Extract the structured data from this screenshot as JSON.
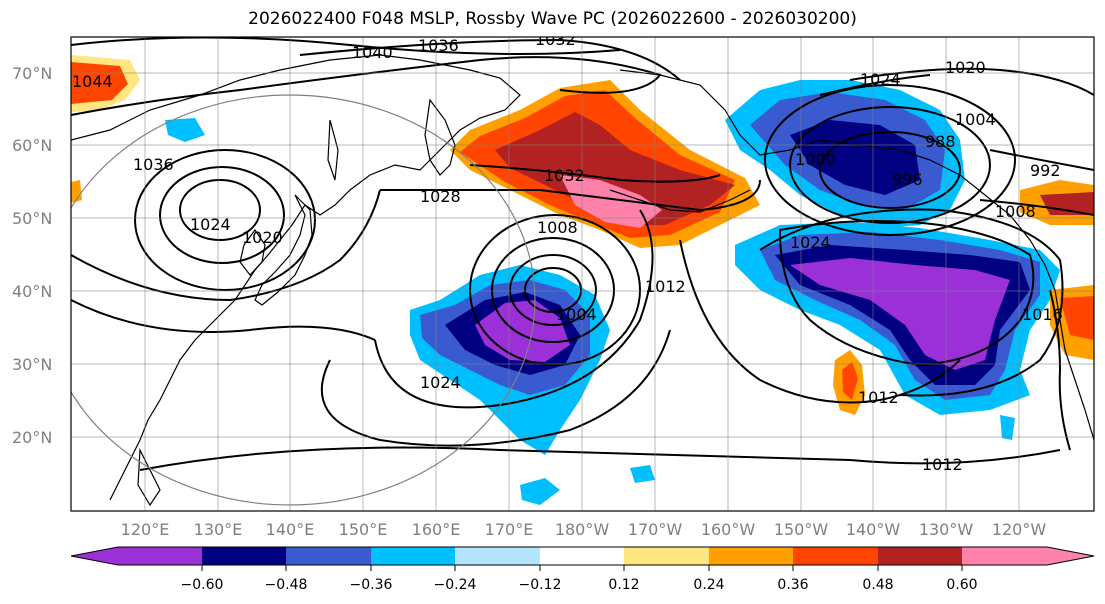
{
  "title": "2026022400 F048 MSLP, Rossby Wave PC (2026022600 - 2026030200)",
  "lat_labels": [
    "70°N",
    "60°N",
    "50°N",
    "40°N",
    "30°N",
    "20°N"
  ],
  "lon_labels": [
    "120°E",
    "130°E",
    "140°E",
    "150°E",
    "160°E",
    "170°E",
    "180°W",
    "170°W",
    "160°W",
    "150°W",
    "140°W",
    "130°W",
    "120°W"
  ],
  "contour_labels": [
    "1044",
    "1040",
    "1036",
    "1032",
    "1020",
    "1024",
    "1004",
    "988",
    "1000",
    "996",
    "992",
    "1008",
    "1036",
    "1028",
    "1032",
    "1024",
    "1020",
    "1024",
    "1008",
    "1004",
    "1012",
    "1024",
    "1012",
    "1012",
    "1016"
  ],
  "colorbar": {
    "colors": [
      "#9b30d9",
      "#000080",
      "#3a5bd0",
      "#00bfff",
      "#b3e5ff",
      "#ffffff",
      "#ffe680",
      "#ffa000",
      "#ff4500",
      "#b22222",
      "#ff82ab"
    ],
    "tick_labels": [
      "−0.60",
      "−0.48",
      "−0.36",
      "−0.24",
      "−0.12",
      "0.12",
      "0.24",
      "0.36",
      "0.48",
      "0.60"
    ]
  },
  "fill_colors": {
    "neg_strong": "#9b30d9",
    "neg_dark": "#000080",
    "neg_mid": "#3a5bd0",
    "neg_light": "#00bfff",
    "neg_pale": "#b3e5ff",
    "pos_pale": "#ffe680",
    "pos_light": "#ffa000",
    "pos_mid": "#ff4500",
    "pos_dark": "#b22222",
    "pos_strong": "#ff82ab"
  }
}
